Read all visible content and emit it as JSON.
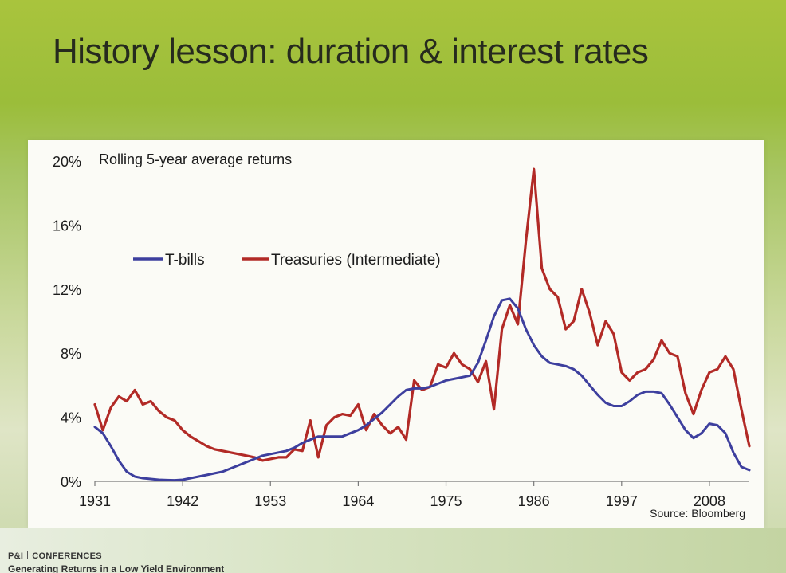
{
  "slide": {
    "title": "History lesson: duration & interest rates"
  },
  "source": "Source: Bloomberg",
  "footer": {
    "brand": "P&I",
    "brand_suffix": "CONFERENCES",
    "subtitle": "Generating Returns in a Low Yield Environment"
  },
  "colors": {
    "tbills": "#3d3f9e",
    "treasuries": "#b22a26",
    "text": "#1c1c1c"
  },
  "chart_data": {
    "type": "line",
    "title": "Rolling 5-year average returns",
    "xlabel": "",
    "ylabel": "",
    "xlim": [
      1931,
      2013
    ],
    "ylim": [
      0,
      20
    ],
    "xticks": [
      1931,
      1942,
      1953,
      1964,
      1975,
      1986,
      1997,
      2008
    ],
    "yticks": [
      0,
      4,
      8,
      12,
      16,
      20
    ],
    "ytick_labels": [
      "0%",
      "4%",
      "8%",
      "12%",
      "16%",
      "20%"
    ],
    "legend_position": "upper-left",
    "grid": false,
    "series": [
      {
        "name": "T-bills",
        "x": [
          1931,
          1932,
          1933,
          1934,
          1935,
          1936,
          1937,
          1938,
          1939,
          1940,
          1941,
          1942,
          1943,
          1944,
          1945,
          1946,
          1947,
          1948,
          1949,
          1950,
          1951,
          1952,
          1953,
          1954,
          1955,
          1956,
          1957,
          1958,
          1959,
          1960,
          1961,
          1962,
          1963,
          1964,
          1965,
          1966,
          1967,
          1968,
          1969,
          1970,
          1971,
          1972,
          1973,
          1974,
          1975,
          1976,
          1977,
          1978,
          1979,
          1980,
          1981,
          1982,
          1983,
          1984,
          1985,
          1986,
          1987,
          1988,
          1989,
          1990,
          1991,
          1992,
          1993,
          1994,
          1995,
          1996,
          1997,
          1998,
          1999,
          2000,
          2001,
          2002,
          2003,
          2004,
          2005,
          2006,
          2007,
          2008,
          2009,
          2010,
          2011,
          2012,
          2013
        ],
        "values": [
          3.4,
          3.0,
          2.2,
          1.3,
          0.6,
          0.3,
          0.2,
          0.15,
          0.1,
          0.08,
          0.07,
          0.1,
          0.2,
          0.3,
          0.4,
          0.5,
          0.6,
          0.8,
          1.0,
          1.2,
          1.4,
          1.6,
          1.7,
          1.8,
          1.9,
          2.1,
          2.4,
          2.6,
          2.8,
          2.8,
          2.8,
          2.8,
          3.0,
          3.2,
          3.5,
          3.9,
          4.3,
          4.8,
          5.3,
          5.7,
          5.8,
          5.8,
          5.9,
          6.1,
          6.3,
          6.4,
          6.5,
          6.6,
          7.4,
          8.8,
          10.3,
          11.3,
          11.4,
          10.8,
          9.5,
          8.5,
          7.8,
          7.4,
          7.3,
          7.2,
          7.0,
          6.6,
          6.0,
          5.4,
          4.9,
          4.7,
          4.7,
          5.0,
          5.4,
          5.6,
          5.6,
          5.5,
          4.8,
          4.0,
          3.2,
          2.7,
          3.0,
          3.6,
          3.5,
          3.0,
          1.8,
          0.9,
          0.7
        ]
      },
      {
        "name": "Treasuries (Intermediate)",
        "x": [
          1931,
          1932,
          1933,
          1934,
          1935,
          1936,
          1937,
          1938,
          1939,
          1940,
          1941,
          1942,
          1943,
          1944,
          1945,
          1946,
          1947,
          1948,
          1949,
          1950,
          1951,
          1952,
          1953,
          1954,
          1955,
          1956,
          1957,
          1958,
          1959,
          1960,
          1961,
          1962,
          1963,
          1964,
          1965,
          1966,
          1967,
          1968,
          1969,
          1970,
          1971,
          1972,
          1973,
          1974,
          1975,
          1976,
          1977,
          1978,
          1979,
          1980,
          1981,
          1982,
          1983,
          1984,
          1985,
          1986,
          1987,
          1988,
          1989,
          1990,
          1991,
          1992,
          1993,
          1994,
          1995,
          1996,
          1997,
          1998,
          1999,
          2000,
          2001,
          2002,
          2003,
          2004,
          2005,
          2006,
          2007,
          2008,
          2009,
          2010,
          2011,
          2012,
          2013
        ],
        "values": [
          4.8,
          3.2,
          4.6,
          5.3,
          5.0,
          5.7,
          4.8,
          5.0,
          4.4,
          4.0,
          3.8,
          3.2,
          2.8,
          2.5,
          2.2,
          2.0,
          1.9,
          1.8,
          1.7,
          1.6,
          1.5,
          1.3,
          1.4,
          1.5,
          1.5,
          2.0,
          1.9,
          3.8,
          1.5,
          3.5,
          4.0,
          4.2,
          4.1,
          4.8,
          3.2,
          4.2,
          3.5,
          3.0,
          3.4,
          2.6,
          6.3,
          5.7,
          5.9,
          7.3,
          7.1,
          8.0,
          7.3,
          7.0,
          6.2,
          7.5,
          4.5,
          9.5,
          11.0,
          9.8,
          15.0,
          19.5,
          13.3,
          12.0,
          11.5,
          9.5,
          10.0,
          12.0,
          10.5,
          8.5,
          10.0,
          9.2,
          6.8,
          6.3,
          6.8,
          7.0,
          7.6,
          8.8,
          8.0,
          7.8,
          5.5,
          4.2,
          5.7,
          6.8,
          7.0,
          7.8,
          7.0,
          4.5,
          2.2
        ]
      }
    ]
  }
}
